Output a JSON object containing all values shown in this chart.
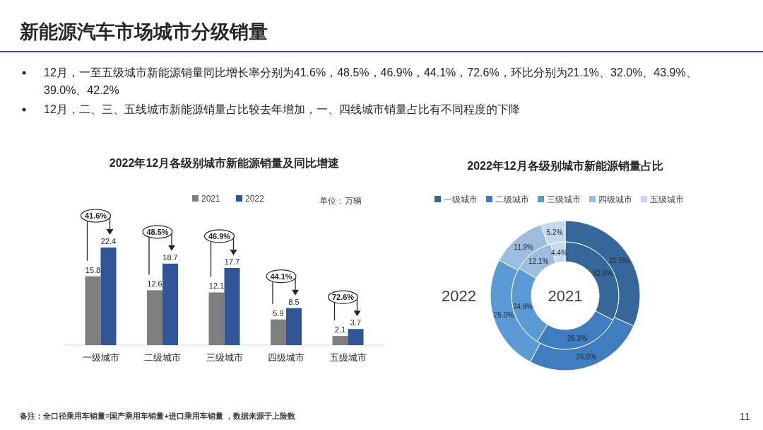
{
  "chart_data": [
    {
      "type": "other",
      "title": "新能源汽车市场城市分级销量",
      "annotations": [
        "12月，一至五级城市新能源销量同比增长率分别为41.6%，48.5%，46.9%，44.1%，72.6%，环比分别为21.1%、32.0%、43.9%、39.0%、42.2%",
        "12月，二、三、五线城市新能源销量占比较去年增加，一、四线城市销量占比有不同程度的下降",
        "备注：全口径乘用车销量=国产乘用车销量+进口乘用车销量 ，数据来源于上险数",
        "11"
      ]
    },
    {
      "type": "bar",
      "title": "2022年12月各级别城市新能源销量及同比增速",
      "categories": [
        "一级城市",
        "二级城市",
        "三级城市",
        "四级城市",
        "五级城市"
      ],
      "series": [
        {
          "name": "2021",
          "color": "#7f7f7f",
          "values": [
            15.8,
            12.6,
            12.1,
            5.9,
            2.1
          ]
        },
        {
          "name": "2022",
          "color": "#2f5597",
          "values": [
            22.4,
            18.7,
            17.7,
            8.5,
            3.7
          ]
        }
      ],
      "data_labels": true,
      "legend": "top",
      "annotations": [
        "单位：万辆",
        "41.6%",
        "48.5%",
        "46.9%",
        "44.1%",
        "72.6%"
      ]
    },
    {
      "type": "donut",
      "title": "2022年12月各级别城市新能源销量占比",
      "categories": [
        "一级城市",
        "二级城市",
        "三级城市",
        "四级城市",
        "五级城市"
      ],
      "colors": [
        "#35679a",
        "#3f7cc0",
        "#5b9bd5",
        "#9dbde0",
        "#c6d8ee"
      ],
      "series": [
        {
          "name": "2021",
          "values": [
            32.6,
            26.3,
            24.9,
            12.1,
            4.4
          ],
          "value_labels": [
            "32.6%",
            "26.3%",
            "24.9%",
            "12.1%",
            "4.4%"
          ]
        },
        {
          "name": "2022",
          "values": [
            31.5,
            26.0,
            25.0,
            11.9,
            5.2
          ],
          "value_labels": [
            "31.5%",
            "26.0%",
            "25.0%",
            "11.9%",
            "5.2%"
          ]
        }
      ],
      "legend": "top"
    }
  ]
}
